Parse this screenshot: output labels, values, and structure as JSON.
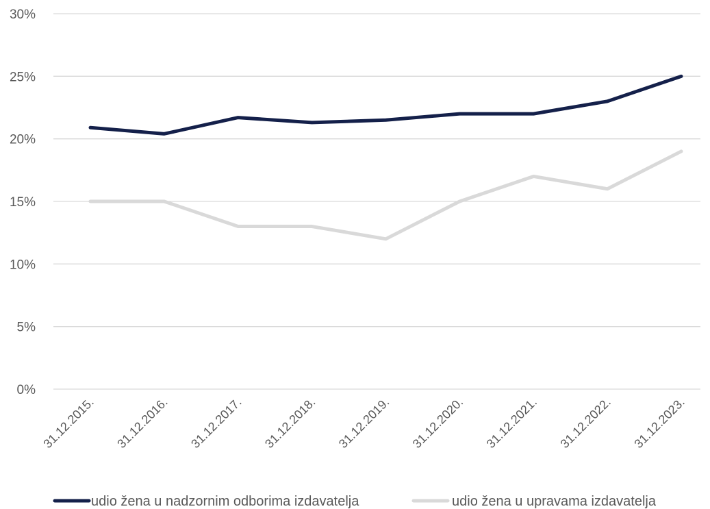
{
  "chart_data": {
    "type": "line",
    "title": "",
    "xlabel": "",
    "ylabel": "",
    "categories": [
      "31.12.2015.",
      "31.12.2016.",
      "31.12.2017.",
      "31.12.2018.",
      "31.12.2019.",
      "31.12.2020.",
      "31.12.2021.",
      "31.12.2022.",
      "31.12.2023."
    ],
    "ylim": [
      0,
      30
    ],
    "yticks": [
      "0%",
      "5%",
      "10%",
      "15%",
      "20%",
      "25%",
      "30%"
    ],
    "grid": true,
    "legend_position": "bottom",
    "series": [
      {
        "name": "udio žena u nadzornim odborima izdavatelja",
        "color": "#14204a",
        "values": [
          20.9,
          20.4,
          21.7,
          21.3,
          21.5,
          22.0,
          22.0,
          23.0,
          25.0
        ]
      },
      {
        "name": "udio žena u upravama izdavatelja",
        "color": "#d9d9d9",
        "values": [
          15.0,
          15.0,
          13.0,
          13.0,
          12.0,
          15.0,
          17.0,
          16.0,
          19.0
        ]
      }
    ]
  }
}
